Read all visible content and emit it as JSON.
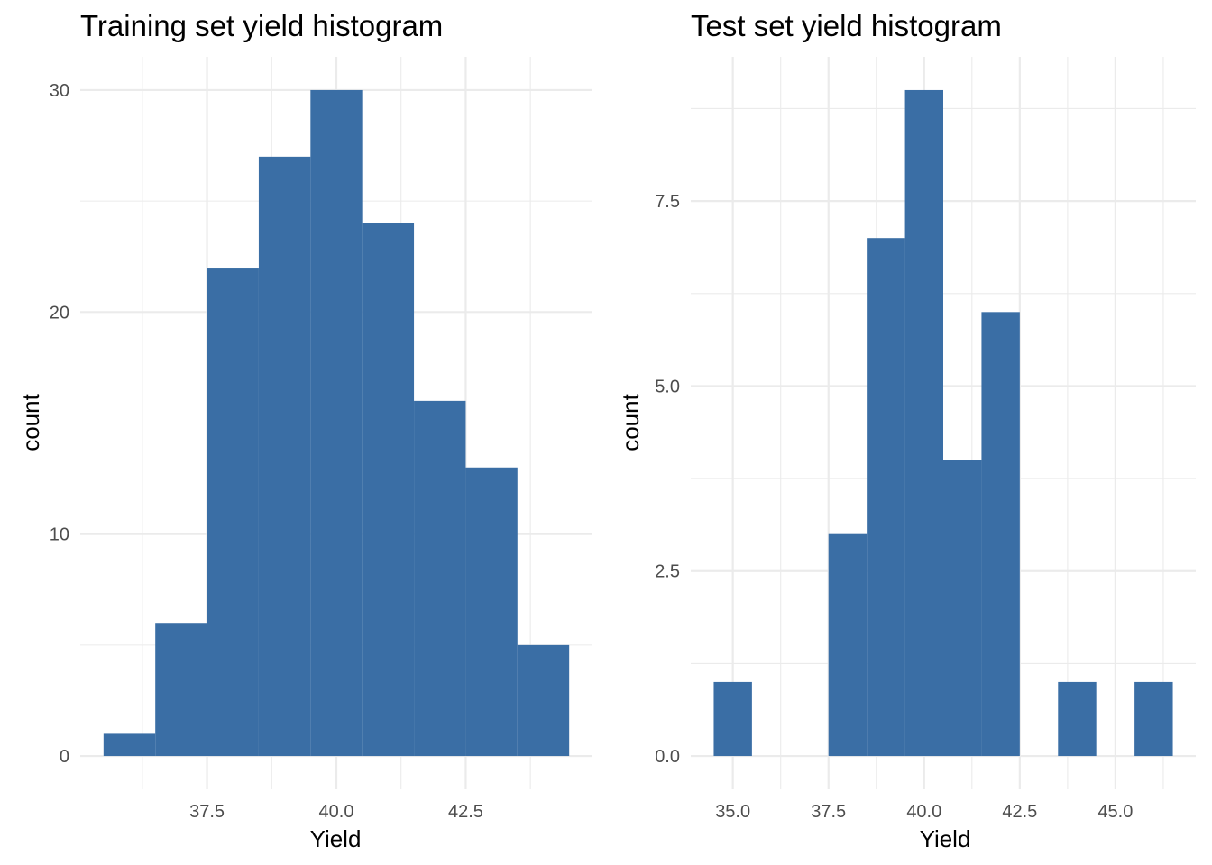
{
  "chart_data": [
    {
      "type": "bar",
      "title": "Training set yield histogram",
      "xlabel": "Yield",
      "ylabel": "count",
      "bin_width": 1,
      "bins": [
        {
          "x_min": 35.5,
          "x_max": 36.5,
          "count": 1
        },
        {
          "x_min": 36.5,
          "x_max": 37.5,
          "count": 6
        },
        {
          "x_min": 37.5,
          "x_max": 38.5,
          "count": 22
        },
        {
          "x_min": 38.5,
          "x_max": 39.5,
          "count": 27
        },
        {
          "x_min": 39.5,
          "x_max": 40.5,
          "count": 30
        },
        {
          "x_min": 40.5,
          "x_max": 41.5,
          "count": 24
        },
        {
          "x_min": 41.5,
          "x_max": 42.5,
          "count": 16
        },
        {
          "x_min": 42.5,
          "x_max": 43.5,
          "count": 13
        },
        {
          "x_min": 43.5,
          "x_max": 44.5,
          "count": 5
        }
      ],
      "xlim": [
        35.05,
        44.95
      ],
      "ylim": [
        -1.5,
        31.5
      ],
      "x_major_ticks": [
        37.5,
        40.0,
        42.5
      ],
      "x_tick_labels": [
        "37.5",
        "40.0",
        "42.5"
      ],
      "x_minor_ticks": [
        36.25,
        38.75,
        41.25,
        43.75
      ],
      "y_major_ticks": [
        0,
        10,
        20,
        30
      ],
      "y_tick_labels": [
        "0",
        "10",
        "20",
        "30"
      ],
      "y_minor_ticks": [
        5,
        15,
        25
      ],
      "grid": true,
      "bar_color": "#3a6ea5"
    },
    {
      "type": "bar",
      "title": "Test set yield histogram",
      "xlabel": "Yield",
      "ylabel": "count",
      "bin_width": 1,
      "bins": [
        {
          "x_min": 34.5,
          "x_max": 35.5,
          "count": 1
        },
        {
          "x_min": 35.5,
          "x_max": 36.5,
          "count": 0
        },
        {
          "x_min": 36.5,
          "x_max": 37.5,
          "count": 0
        },
        {
          "x_min": 37.5,
          "x_max": 38.5,
          "count": 3
        },
        {
          "x_min": 38.5,
          "x_max": 39.5,
          "count": 7
        },
        {
          "x_min": 39.5,
          "x_max": 40.5,
          "count": 9
        },
        {
          "x_min": 40.5,
          "x_max": 41.5,
          "count": 4
        },
        {
          "x_min": 41.5,
          "x_max": 42.5,
          "count": 6
        },
        {
          "x_min": 42.5,
          "x_max": 43.5,
          "count": 0
        },
        {
          "x_min": 43.5,
          "x_max": 44.5,
          "count": 1
        },
        {
          "x_min": 44.5,
          "x_max": 45.5,
          "count": 0
        },
        {
          "x_min": 45.5,
          "x_max": 46.5,
          "count": 1
        }
      ],
      "xlim": [
        33.9,
        47.1
      ],
      "ylim": [
        -0.45,
        9.45
      ],
      "x_major_ticks": [
        35.0,
        37.5,
        40.0,
        42.5,
        45.0
      ],
      "x_tick_labels": [
        "35.0",
        "37.5",
        "40.0",
        "42.5",
        "45.0"
      ],
      "x_minor_ticks": [
        36.25,
        38.75,
        41.25,
        43.75,
        46.25
      ],
      "y_major_ticks": [
        0,
        2.5,
        5,
        7.5
      ],
      "y_tick_labels": [
        "0.0",
        "2.5",
        "5.0",
        "7.5"
      ],
      "y_minor_ticks": [
        1.25,
        3.75,
        6.25,
        8.75
      ],
      "grid": true,
      "bar_color": "#3a6ea5"
    }
  ]
}
